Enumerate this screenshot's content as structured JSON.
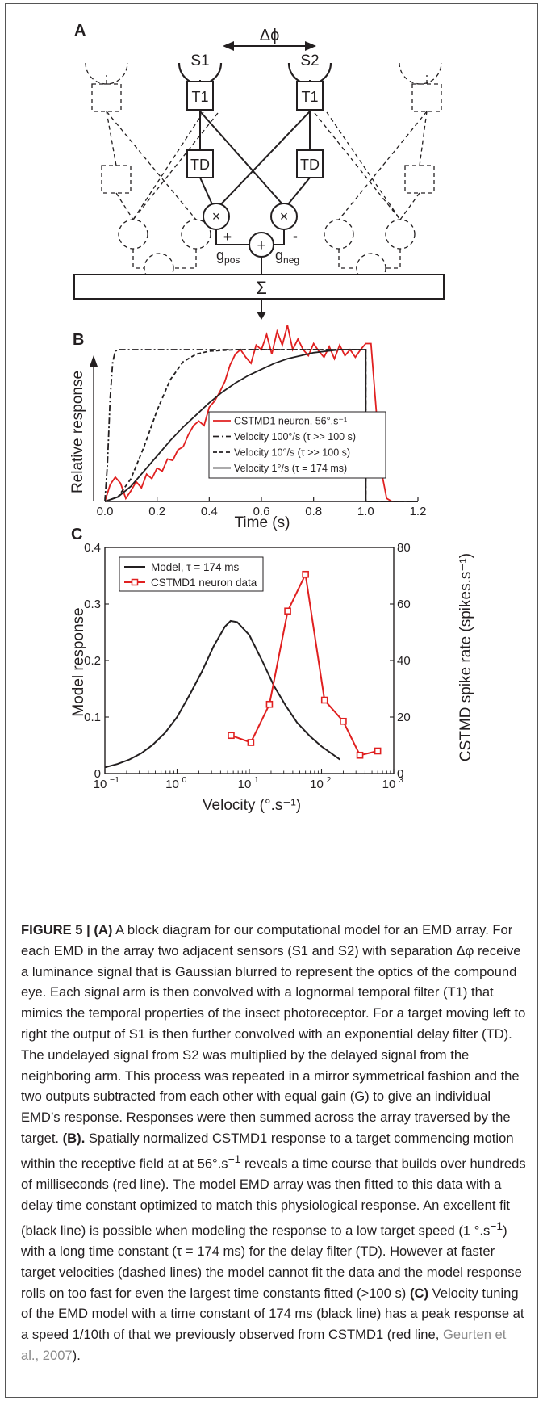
{
  "colors": {
    "red": "#e02020",
    "black": "#231f20",
    "cite": "#8a8a8a"
  },
  "panel_a": {
    "label": "A",
    "dphi": "Δϕ",
    "s1": "S1",
    "s2": "S2",
    "t1": "T1",
    "td": "TD",
    "mult": "×",
    "sum": "+",
    "plus": "+",
    "minus": "-",
    "gpos_g": "g",
    "gpos_sub": "pos",
    "gneg_g": "g",
    "gneg_sub": "neg",
    "sigma": "Σ"
  },
  "panel_b": {
    "label": "B"
  },
  "panel_c": {
    "label": "C"
  },
  "chart_data": [
    {
      "type": "line",
      "xlabel": "Time (s)",
      "ylabel": "Relative response",
      "xlim": [
        0,
        1.2
      ],
      "ylim": [
        0,
        1
      ],
      "xticks": [
        "0.0",
        "0.2",
        "0.4",
        "0.6",
        "0.8",
        "1.0",
        "1.2"
      ],
      "legend_position": "right",
      "series": [
        {
          "name": "CSTMD1 neuron, 56°.s⁻¹",
          "color": "#e02020",
          "style": "solid",
          "x": [
            0,
            0.02,
            0.04,
            0.06,
            0.08,
            0.1,
            0.12,
            0.14,
            0.16,
            0.18,
            0.2,
            0.22,
            0.24,
            0.26,
            0.28,
            0.3,
            0.32,
            0.34,
            0.36,
            0.38,
            0.4,
            0.42,
            0.44,
            0.46,
            0.48,
            0.5,
            0.52,
            0.54,
            0.56,
            0.58,
            0.6,
            0.62,
            0.64,
            0.66,
            0.68,
            0.7,
            0.72,
            0.74,
            0.76,
            0.78,
            0.8,
            0.82,
            0.84,
            0.86,
            0.88,
            0.9,
            0.92,
            0.94,
            0.96,
            0.98,
            1.0,
            1.02,
            1.04,
            1.06,
            1.08,
            1.1,
            1.12
          ],
          "y": [
            0,
            0.11,
            0.16,
            0.12,
            0.02,
            0.07,
            0.13,
            0.09,
            0.18,
            0.15,
            0.22,
            0.2,
            0.28,
            0.27,
            0.34,
            0.36,
            0.44,
            0.5,
            0.53,
            0.5,
            0.62,
            0.66,
            0.72,
            0.79,
            0.9,
            0.97,
            1.0,
            0.95,
            0.91,
            1.03,
            1.0,
            1.1,
            0.97,
            1.12,
            1.03,
            1.16,
            1.0,
            1.07,
            1.0,
            0.96,
            1.04,
            0.99,
            0.95,
            1.02,
            0.94,
            1.03,
            0.96,
            1.0,
            0.95,
            1.0,
            1.04,
            1.04,
            0.6,
            0.2,
            0.02,
            0.0,
            0.0
          ]
        },
        {
          "name": "Velocity 100°/s (τ >> 100 s)",
          "color": "#231f20",
          "style": "dashdot",
          "x": [
            0,
            0.01,
            0.02,
            0.03,
            0.04,
            0.05,
            0.07,
            1.0,
            1.0,
            1.01,
            1.2
          ],
          "y": [
            0,
            0.25,
            0.68,
            0.92,
            0.99,
            1.0,
            1.0,
            1.0,
            0.0,
            0.0,
            0.0
          ]
        },
        {
          "name": "Velocity 10°/s (τ >> 100 s)",
          "color": "#231f20",
          "style": "dashed",
          "x": [
            0,
            0.05,
            0.1,
            0.15,
            0.2,
            0.25,
            0.3,
            0.35,
            0.4,
            0.5,
            0.6,
            0.7,
            1.0,
            1.0,
            1.01,
            1.2
          ],
          "y": [
            0,
            0.03,
            0.15,
            0.36,
            0.6,
            0.8,
            0.92,
            0.97,
            0.99,
            1.0,
            1.0,
            1.0,
            1.0,
            0.0,
            0.0,
            0.0
          ]
        },
        {
          "name": "Velocity 1°/s (τ = 174 ms)",
          "color": "#231f20",
          "style": "solid",
          "x": [
            0,
            0.05,
            0.1,
            0.15,
            0.2,
            0.25,
            0.3,
            0.35,
            0.4,
            0.45,
            0.5,
            0.55,
            0.6,
            0.65,
            0.7,
            0.75,
            0.8,
            0.85,
            0.9,
            0.95,
            1.0,
            1.0,
            1.01,
            1.2
          ],
          "y": [
            0,
            0.03,
            0.1,
            0.2,
            0.3,
            0.4,
            0.49,
            0.57,
            0.65,
            0.72,
            0.78,
            0.83,
            0.87,
            0.91,
            0.94,
            0.96,
            0.98,
            0.99,
            1.0,
            1.0,
            1.0,
            0.0,
            0.0,
            0.0
          ]
        }
      ]
    },
    {
      "type": "line",
      "xscale": "log",
      "xlabel": "Velocity (°.s⁻¹)",
      "ylabel": "Model response",
      "y2label": "CSTMD spike rate (spikes.s⁻¹)",
      "xlim": [
        0.1,
        1000
      ],
      "ylim": [
        0,
        0.4
      ],
      "y2lim": [
        0,
        80
      ],
      "xticks": [
        0.1,
        1,
        10,
        100,
        1000
      ],
      "yticks": [
        "0",
        "0.1",
        "0.2",
        "0.3",
        "0.4"
      ],
      "y2ticks": [
        "0",
        "20",
        "40",
        "60",
        "80"
      ],
      "legend_position": "top-left",
      "series": [
        {
          "name": "Model, τ = 174 ms",
          "color": "#231f20",
          "axis": "left",
          "x": [
            0.1,
            0.15,
            0.22,
            0.32,
            0.46,
            0.68,
            1,
            1.5,
            2.2,
            3.2,
            4.6,
            5.5,
            6.8,
            10,
            15,
            22,
            32,
            46,
            68,
            100,
            150,
            180
          ],
          "y": [
            0.011,
            0.017,
            0.025,
            0.036,
            0.051,
            0.072,
            0.1,
            0.14,
            0.18,
            0.225,
            0.26,
            0.27,
            0.268,
            0.245,
            0.2,
            0.155,
            0.12,
            0.09,
            0.067,
            0.048,
            0.032,
            0.025
          ]
        },
        {
          "name": "CSTMD1 neuron data",
          "color": "#e02020",
          "axis": "right",
          "marker": "square",
          "x": [
            5.6,
            10.5,
            19,
            34,
            60,
            110,
            200,
            340,
            600
          ],
          "y": [
            13.5,
            11,
            24.5,
            57.5,
            70.5,
            26,
            18.5,
            6.5,
            8
          ]
        }
      ]
    }
  ],
  "caption": {
    "fig_label": "FIGURE 5 | ",
    "a_label": "(A)",
    "p1": " A block diagram for our computational model for an EMD array. For each EMD in the array two adjacent sensors (S1 and S2) with separation Δφ receive a luminance signal that is Gaussian blurred to represent the optics of the compound eye. Each signal arm is then convolved with a lognormal temporal filter (T1) that mimics the temporal properties of the insect photoreceptor. For a target moving left to right the output of S1 is then further convolved with an exponential delay filter (TD). The undelayed signal from S2 was multiplied by the delayed signal from the neighboring arm. This process was repeated in a mirror symmetrical fashion and the two outputs subtracted from each other with equal gain (G) to give an individual EMD’s response. Responses were then summed across the array traversed by the target. ",
    "b_label": "(B).",
    "p2": " Spatially normalized CSTMD1 response to a target commencing motion within the receptive field at at 56°.s",
    "p2_sup": "−1",
    "p3": " reveals a time course that builds over hundreds of milliseconds (red line). The model EMD array was then fitted to this data with a delay time constant optimized to match this physiological response. An excellent fit (black line) is possible when modeling the response to a low target speed (1 °.s",
    "p3_sup": "−1",
    "p4": ") with a long time constant (τ = 174 ms) for the delay filter (TD). However at faster target velocities (dashed lines) the model cannot fit the data and the model response rolls on too fast for even the largest time constants fitted (>100 s) ",
    "c_label": "(C)",
    "p5": " Velocity tuning of the EMD model with a time constant of 174 ms (black line) has a peak response at a speed 1/10th of that we previously observed from CSTMD1 (red line, ",
    "cite": "Geurten et al., 2007",
    "p6": ")."
  }
}
